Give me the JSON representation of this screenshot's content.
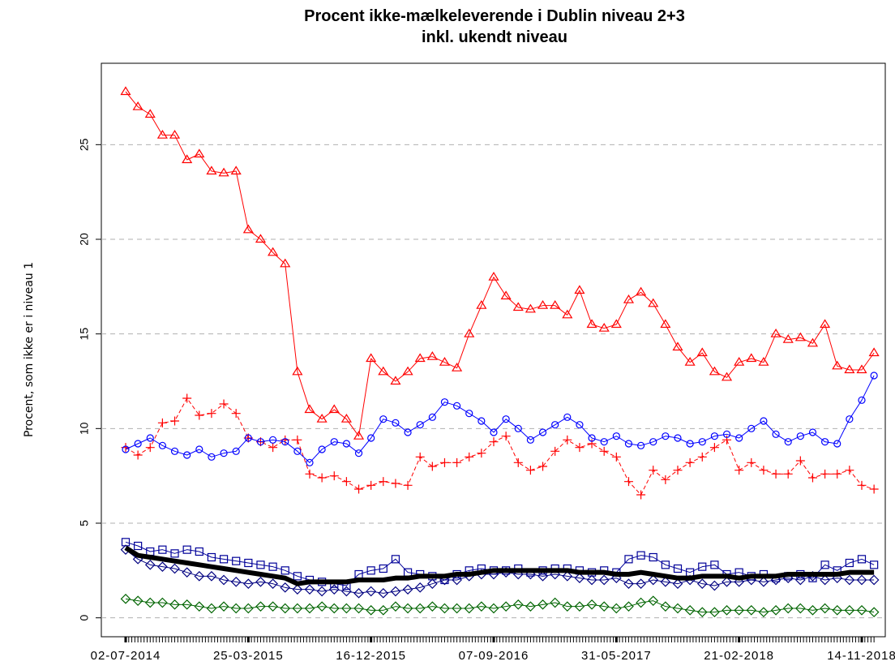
{
  "chart_data": {
    "type": "line",
    "title": [
      "Procent ikke-mælkeleverende i Dublin niveau 2+3",
      "inkl. ukendt niveau"
    ],
    "y_label": "Procent, som ikke er i niveau 1",
    "categories": [
      "02-07-2014",
      null,
      null,
      null,
      null,
      null,
      null,
      null,
      null,
      null,
      "25-03-2015",
      null,
      null,
      null,
      null,
      null,
      null,
      null,
      null,
      null,
      "16-12-2015",
      null,
      null,
      null,
      null,
      null,
      null,
      null,
      null,
      null,
      "07-09-2016",
      null,
      null,
      null,
      null,
      null,
      null,
      null,
      null,
      null,
      "31-05-2017",
      null,
      null,
      null,
      null,
      null,
      null,
      null,
      null,
      null,
      "21-02-2018",
      null,
      null,
      null,
      null,
      null,
      null,
      null,
      null,
      null,
      "14-11-2018",
      null
    ],
    "ylim": [
      -1,
      29.3
    ],
    "yticks": [
      0,
      5,
      10,
      15,
      20,
      25
    ],
    "grid": true,
    "series": [
      {
        "color": "#ff0000",
        "marker": "triangle",
        "line_style": "solid",
        "line_width": 1,
        "values": [
          27.8,
          27,
          26.6,
          25.5,
          25.5,
          24.2,
          24.5,
          23.6,
          23.5,
          23.6,
          20.5,
          20,
          19.3,
          18.7,
          13,
          11,
          10.5,
          11,
          10.5,
          9.6,
          13.7,
          13,
          12.5,
          13,
          13.7,
          13.8,
          13.5,
          13.2,
          15,
          16.5,
          18,
          17,
          16.4,
          16.3,
          16.5,
          16.5,
          16,
          17.3,
          15.5,
          15.3,
          15.5,
          16.8,
          17.2,
          16.6,
          15.5,
          14.3,
          13.5,
          14,
          13,
          12.7,
          13.5,
          13.7,
          13.5,
          15,
          14.7,
          14.8,
          14.5,
          15.5,
          13.3,
          13.1,
          13.1,
          14
        ]
      },
      {
        "color": "#ff0000",
        "marker": "plus",
        "line_style": "dashed",
        "line_width": 1,
        "values": [
          9,
          8.6,
          9,
          10.3,
          10.4,
          11.6,
          10.7,
          10.8,
          11.3,
          10.8,
          9.5,
          9.3,
          9,
          9.4,
          9.4,
          7.6,
          7.4,
          7.5,
          7.2,
          6.8,
          7,
          7.2,
          7.1,
          7,
          8.5,
          8,
          8.2,
          8.2,
          8.5,
          8.7,
          9.3,
          9.6,
          8.2,
          7.8,
          8,
          8.8,
          9.4,
          9,
          9.2,
          8.8,
          8.5,
          7.2,
          6.5,
          7.8,
          7.3,
          7.8,
          8.2,
          8.5,
          9,
          9.4,
          7.8,
          8.2,
          7.8,
          7.6,
          7.6,
          8.3,
          7.4,
          7.6,
          7.6,
          7.8,
          7,
          6.8
        ]
      },
      {
        "color": "#0000ff",
        "marker": "circle",
        "line_style": "solid",
        "line_width": 1,
        "values": [
          8.9,
          9.2,
          9.5,
          9.1,
          8.8,
          8.6,
          8.9,
          8.5,
          8.7,
          8.8,
          9.5,
          9.3,
          9.4,
          9.3,
          8.8,
          8.2,
          8.9,
          9.3,
          9.2,
          8.7,
          9.5,
          10.5,
          10.3,
          9.8,
          10.2,
          10.6,
          11.4,
          11.2,
          10.8,
          10.4,
          9.8,
          10.5,
          10,
          9.4,
          9.8,
          10.2,
          10.6,
          10.2,
          9.5,
          9.3,
          9.6,
          9.2,
          9.1,
          9.3,
          9.6,
          9.5,
          9.2,
          9.3,
          9.6,
          9.7,
          9.5,
          10,
          10.4,
          9.7,
          9.3,
          9.6,
          9.8,
          9.3,
          9.2,
          10.5,
          11.5,
          12.8
        ]
      },
      {
        "color": "#000099",
        "marker": "square",
        "line_style": "solid",
        "line_width": 1,
        "values": [
          4,
          3.8,
          3.5,
          3.6,
          3.4,
          3.6,
          3.5,
          3.2,
          3.1,
          3,
          2.9,
          2.8,
          2.7,
          2.5,
          2.2,
          2,
          1.9,
          1.8,
          1.7,
          2.3,
          2.5,
          2.6,
          3.1,
          2.4,
          2.3,
          2.2,
          2,
          2.3,
          2.5,
          2.6,
          2.5,
          2.5,
          2.6,
          2.4,
          2.5,
          2.6,
          2.6,
          2.5,
          2.4,
          2.5,
          2.4,
          3.1,
          3.3,
          3.2,
          2.8,
          2.6,
          2.4,
          2.7,
          2.8,
          2.3,
          2.4,
          2.2,
          2.3,
          2.1,
          2.2,
          2.3,
          2.1,
          2.8,
          2.5,
          2.9,
          3.1,
          2.8
        ]
      },
      {
        "color": "#000080",
        "marker": "diamond",
        "line_style": "solid",
        "line_width": 1,
        "values": [
          3.6,
          3.1,
          2.8,
          2.7,
          2.6,
          2.4,
          2.2,
          2.2,
          2,
          1.9,
          1.8,
          1.9,
          1.8,
          1.6,
          1.5,
          1.5,
          1.4,
          1.5,
          1.4,
          1.3,
          1.4,
          1.3,
          1.4,
          1.5,
          1.6,
          1.8,
          2,
          2,
          2.2,
          2.3,
          2.3,
          2.4,
          2.3,
          2.3,
          2.2,
          2.3,
          2.2,
          2.1,
          2,
          2,
          2.1,
          1.8,
          1.8,
          2,
          1.9,
          1.8,
          2,
          1.8,
          1.7,
          1.9,
          1.9,
          2,
          1.9,
          2,
          2.1,
          2,
          2.2,
          2,
          2.1,
          2,
          2,
          2
        ]
      },
      {
        "color": "#000000",
        "marker": "none",
        "line_style": "solid",
        "line_width": 6,
        "values": [
          3.7,
          3.3,
          3.2,
          3.1,
          3,
          2.9,
          2.8,
          2.7,
          2.6,
          2.5,
          2.4,
          2.3,
          2.2,
          2.1,
          1.8,
          1.9,
          1.9,
          1.9,
          1.9,
          2,
          2,
          2,
          2.1,
          2.1,
          2.2,
          2.2,
          2.2,
          2.3,
          2.3,
          2.4,
          2.5,
          2.5,
          2.5,
          2.5,
          2.5,
          2.5,
          2.5,
          2.4,
          2.4,
          2.4,
          2.3,
          2.3,
          2.4,
          2.3,
          2.2,
          2.1,
          2.1,
          2.2,
          2.2,
          2.2,
          2.1,
          2.2,
          2.2,
          2.2,
          2.3,
          2.3,
          2.3,
          2.3,
          2.3,
          2.4,
          2.4,
          2.4
        ]
      },
      {
        "color": "#006400",
        "marker": "diamond",
        "line_style": "solid",
        "line_width": 1,
        "values": [
          1,
          0.9,
          0.8,
          0.8,
          0.7,
          0.7,
          0.6,
          0.5,
          0.6,
          0.5,
          0.5,
          0.6,
          0.6,
          0.5,
          0.5,
          0.5,
          0.6,
          0.5,
          0.5,
          0.5,
          0.4,
          0.4,
          0.6,
          0.5,
          0.5,
          0.6,
          0.5,
          0.5,
          0.5,
          0.6,
          0.5,
          0.6,
          0.7,
          0.6,
          0.7,
          0.8,
          0.6,
          0.6,
          0.7,
          0.6,
          0.5,
          0.6,
          0.8,
          0.9,
          0.6,
          0.5,
          0.4,
          0.3,
          0.3,
          0.4,
          0.4,
          0.4,
          0.3,
          0.4,
          0.5,
          0.5,
          0.4,
          0.5,
          0.4,
          0.4,
          0.4,
          0.3
        ]
      }
    ]
  }
}
